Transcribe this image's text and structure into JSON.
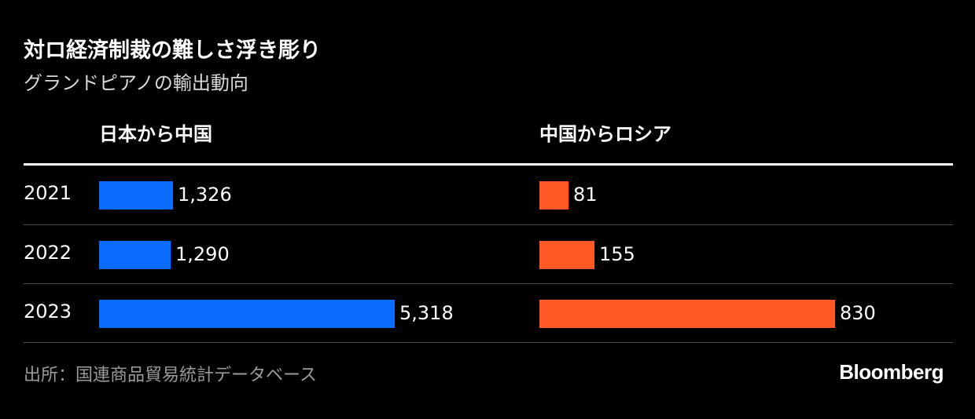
{
  "title": "対ロ経済制裁の難しさ浮き彫り",
  "subtitle": "グランドピアノの輸出動向",
  "source": "出所：国連商品貿易統計データベース",
  "brand": "Bloomberg",
  "colors": {
    "japan_to_china": "#0a6cff",
    "china_to_russia": "#ff5a25",
    "background": "#000000"
  },
  "chart_data": [
    {
      "type": "bar",
      "orientation": "horizontal",
      "title": "日本から中国",
      "categories": [
        "2021",
        "2022",
        "2023"
      ],
      "values": [
        1326,
        1290,
        5318
      ],
      "labels": [
        "1,326",
        "1,290",
        "5,318"
      ]
    },
    {
      "type": "bar",
      "orientation": "horizontal",
      "title": "中国からロシア",
      "categories": [
        "2021",
        "2022",
        "2023"
      ],
      "values": [
        81,
        155,
        830
      ],
      "labels": [
        "81",
        "155",
        "830"
      ]
    }
  ]
}
